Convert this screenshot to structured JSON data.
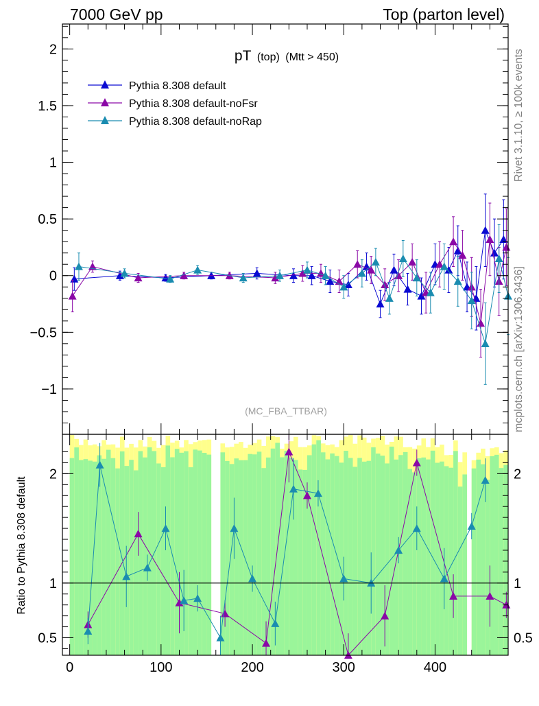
{
  "header": {
    "left": "7000 GeV pp",
    "right": "Top (parton level)"
  },
  "side": {
    "upper": "Rivet 3.1.10, ≥ 100k events",
    "lower": "mcplots.cern.ch [arXiv:1306.3436]"
  },
  "chart_data": [
    {
      "type": "scatter",
      "panel": "main",
      "title": "pT",
      "title_suffix1": "(top)",
      "title_suffix2": "(Mtt > 450)",
      "watermark": "(MC_FBA_TTBAR)",
      "xlabel": "",
      "ylabel": "",
      "xlim": [
        -8,
        480
      ],
      "ylim": [
        -1.4,
        2.22
      ],
      "yticks": [
        -1,
        -0.5,
        0,
        0.5,
        1,
        1.5,
        2
      ],
      "ytick_labels": [
        "−1",
        "−0.5",
        "0",
        "0.5",
        "1",
        "1.5",
        "2"
      ],
      "legend_position": "top-left",
      "grid": false,
      "series": [
        {
          "name": "Pythia 8.308 default",
          "color": "#0a0ad2",
          "x": [
            5,
            55,
            105,
            155,
            205,
            245,
            265,
            285,
            305,
            325,
            340,
            355,
            370,
            385,
            400,
            415,
            425,
            435,
            445,
            455,
            465,
            475
          ],
          "y": [
            -0.03,
            0.0,
            -0.02,
            0.0,
            0.02,
            0.0,
            0.0,
            -0.05,
            -0.08,
            0.08,
            -0.25,
            0.05,
            -0.12,
            -0.18,
            0.1,
            0.05,
            0.22,
            -0.1,
            -0.2,
            0.4,
            0.2,
            0.32
          ],
          "err": [
            0.1,
            0.04,
            0.03,
            0.03,
            0.05,
            0.06,
            0.08,
            0.1,
            0.1,
            0.12,
            0.12,
            0.14,
            0.14,
            0.16,
            0.18,
            0.2,
            0.22,
            0.22,
            0.28,
            0.32,
            0.3,
            0.35
          ]
        },
        {
          "name": "Pythia 8.308 default-noFsr",
          "color": "#8a08a6",
          "x": [
            3,
            25,
            75,
            125,
            175,
            225,
            255,
            275,
            295,
            315,
            330,
            345,
            360,
            375,
            390,
            405,
            420,
            430,
            440,
            450,
            460,
            470,
            478
          ],
          "y": [
            -0.18,
            0.08,
            -0.02,
            0.0,
            0.0,
            -0.02,
            0.02,
            0.02,
            -0.05,
            0.1,
            0.05,
            -0.08,
            0.0,
            0.12,
            -0.15,
            0.1,
            0.3,
            0.18,
            -0.1,
            -0.42,
            0.32,
            -0.05,
            0.25
          ],
          "err": [
            0.14,
            0.05,
            0.04,
            0.03,
            0.03,
            0.05,
            0.07,
            0.08,
            0.1,
            0.12,
            0.12,
            0.14,
            0.14,
            0.16,
            0.18,
            0.2,
            0.22,
            0.22,
            0.26,
            0.3,
            0.32,
            0.3,
            0.34
          ]
        },
        {
          "name": "Pythia 8.308 default-noRap",
          "color": "#1a8cb0",
          "x": [
            10,
            60,
            110,
            140,
            190,
            230,
            260,
            280,
            300,
            320,
            335,
            350,
            365,
            380,
            395,
            410,
            425,
            440,
            455,
            470,
            480
          ],
          "y": [
            0.08,
            0.02,
            -0.03,
            0.05,
            -0.02,
            0.0,
            0.05,
            0.0,
            -0.1,
            0.02,
            0.12,
            -0.2,
            0.15,
            -0.02,
            -0.15,
            0.08,
            -0.05,
            -0.22,
            -0.6,
            0.15,
            -0.18
          ],
          "err": [
            0.12,
            0.04,
            0.03,
            0.04,
            0.04,
            0.05,
            0.07,
            0.08,
            0.1,
            0.12,
            0.12,
            0.14,
            0.16,
            0.16,
            0.18,
            0.2,
            0.22,
            0.25,
            0.36,
            0.3,
            0.34
          ]
        }
      ]
    },
    {
      "type": "line",
      "panel": "ratio",
      "ylabel": "Ratio to Pythia 8.308 default",
      "xlabel": "",
      "xlim": [
        -8,
        480
      ],
      "ylim": [
        0.34,
        2.36
      ],
      "xticks": [
        0,
        100,
        200,
        300,
        400
      ],
      "yticks": [
        0.5,
        1,
        2
      ],
      "ytick_labels": [
        "0.5",
        "1",
        "2"
      ],
      "reference_line": 1,
      "series": [
        {
          "name": "Pythia 8.308 default-noFsr",
          "color": "#8a08a6",
          "x": [
            20,
            75,
            120,
            170,
            215,
            240,
            260,
            305,
            345,
            380,
            420,
            460,
            478
          ],
          "y": [
            0.62,
            1.45,
            0.82,
            0.72,
            0.45,
            2.2,
            1.8,
            0.34,
            0.7,
            2.1,
            0.88,
            0.88,
            0.8
          ]
        },
        {
          "name": "Pythia 8.308 default-noRap",
          "color": "#1a8cb0",
          "x": [
            20,
            33,
            62,
            85,
            105,
            125,
            140,
            165,
            180,
            200,
            225,
            245,
            272,
            300,
            330,
            360,
            380,
            410,
            440,
            455
          ],
          "y": [
            0.56,
            2.08,
            1.06,
            1.14,
            1.5,
            0.84,
            0.86,
            0.5,
            1.5,
            1.04,
            0.63,
            1.86,
            1.82,
            1.04,
            1.0,
            1.3,
            1.5,
            1.04,
            1.52,
            1.94
          ]
        }
      ]
    }
  ]
}
